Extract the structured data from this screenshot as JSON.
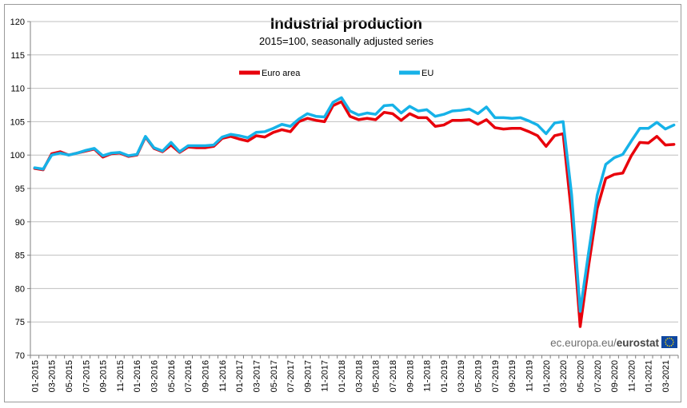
{
  "chart_data": {
    "type": "line",
    "title": "Industrial production",
    "subtitle": "2015=100, seasonally adjusted series",
    "xlabel": "",
    "ylabel": "",
    "ylim": [
      70,
      120
    ],
    "yticks": [
      70,
      75,
      80,
      85,
      90,
      95,
      100,
      105,
      110,
      115,
      120
    ],
    "grid": true,
    "legend_position": "top",
    "x_tick_labels": [
      "01-2015",
      "03-2015",
      "05-2015",
      "07-2015",
      "09-2015",
      "11-2015",
      "01-2016",
      "03-2016",
      "05-2016",
      "07-2016",
      "09-2016",
      "11-2016",
      "01-2017",
      "03-2017",
      "05-2017",
      "07-2017",
      "09-2017",
      "11-2017",
      "01-2018",
      "03-2018",
      "05-2018",
      "07-2018",
      "09-2018",
      "11-2018",
      "01-2019",
      "03-2019",
      "05-2019",
      "07-2019",
      "09-2019",
      "11-2019",
      "01-2020",
      "03-2020",
      "05-2020",
      "07-2020",
      "09-2020",
      "11-2020",
      "01-2021",
      "03-2021"
    ],
    "x_start": "01-2015",
    "x_end": "03-2021",
    "series": [
      {
        "name": "Euro area",
        "color": "#e8000b",
        "values": [
          98.0,
          97.8,
          100.2,
          100.5,
          100.0,
          100.3,
          100.6,
          100.9,
          99.7,
          100.2,
          100.3,
          99.8,
          100.0,
          102.7,
          101.0,
          100.5,
          101.5,
          100.4,
          101.2,
          101.1,
          101.1,
          101.3,
          102.5,
          102.8,
          102.4,
          102.1,
          102.9,
          102.7,
          103.4,
          103.8,
          103.5,
          105.0,
          105.5,
          105.2,
          105.0,
          107.4,
          108.0,
          105.8,
          105.3,
          105.5,
          105.3,
          106.4,
          106.2,
          105.2,
          106.2,
          105.6,
          105.6,
          104.3,
          104.5,
          105.2,
          105.2,
          105.3,
          104.6,
          105.3,
          104.1,
          103.9,
          104.0,
          104.0,
          103.5,
          102.9,
          101.3,
          102.9,
          103.2,
          91.0,
          74.3,
          83.5,
          92.0,
          96.5,
          97.1,
          97.3,
          99.9,
          101.9,
          101.8,
          102.8,
          101.5,
          101.6
        ]
      },
      {
        "name": "EU",
        "color": "#16b2e8",
        "values": [
          98.1,
          97.9,
          100.0,
          100.3,
          100.0,
          100.3,
          100.7,
          101.0,
          99.9,
          100.3,
          100.4,
          99.9,
          100.1,
          102.8,
          101.1,
          100.6,
          101.9,
          100.5,
          101.4,
          101.4,
          101.4,
          101.5,
          102.7,
          103.1,
          102.9,
          102.6,
          103.4,
          103.5,
          104.0,
          104.6,
          104.3,
          105.4,
          106.2,
          105.8,
          105.7,
          107.9,
          108.6,
          106.6,
          106.0,
          106.3,
          106.1,
          107.4,
          107.5,
          106.3,
          107.3,
          106.6,
          106.8,
          105.8,
          106.1,
          106.6,
          106.7,
          106.9,
          106.2,
          107.2,
          105.6,
          105.6,
          105.5,
          105.6,
          105.1,
          104.5,
          103.2,
          104.8,
          105.0,
          94.0,
          76.6,
          85.5,
          94.0,
          98.6,
          99.6,
          100.1,
          102.1,
          104.0,
          104.0,
          104.9,
          103.9,
          104.5
        ]
      }
    ]
  },
  "source": {
    "prefix": "ec.europa.eu/",
    "brand": "eurostat",
    "flag_color": "#0e47a1",
    "star_color": "#ffdd00"
  }
}
